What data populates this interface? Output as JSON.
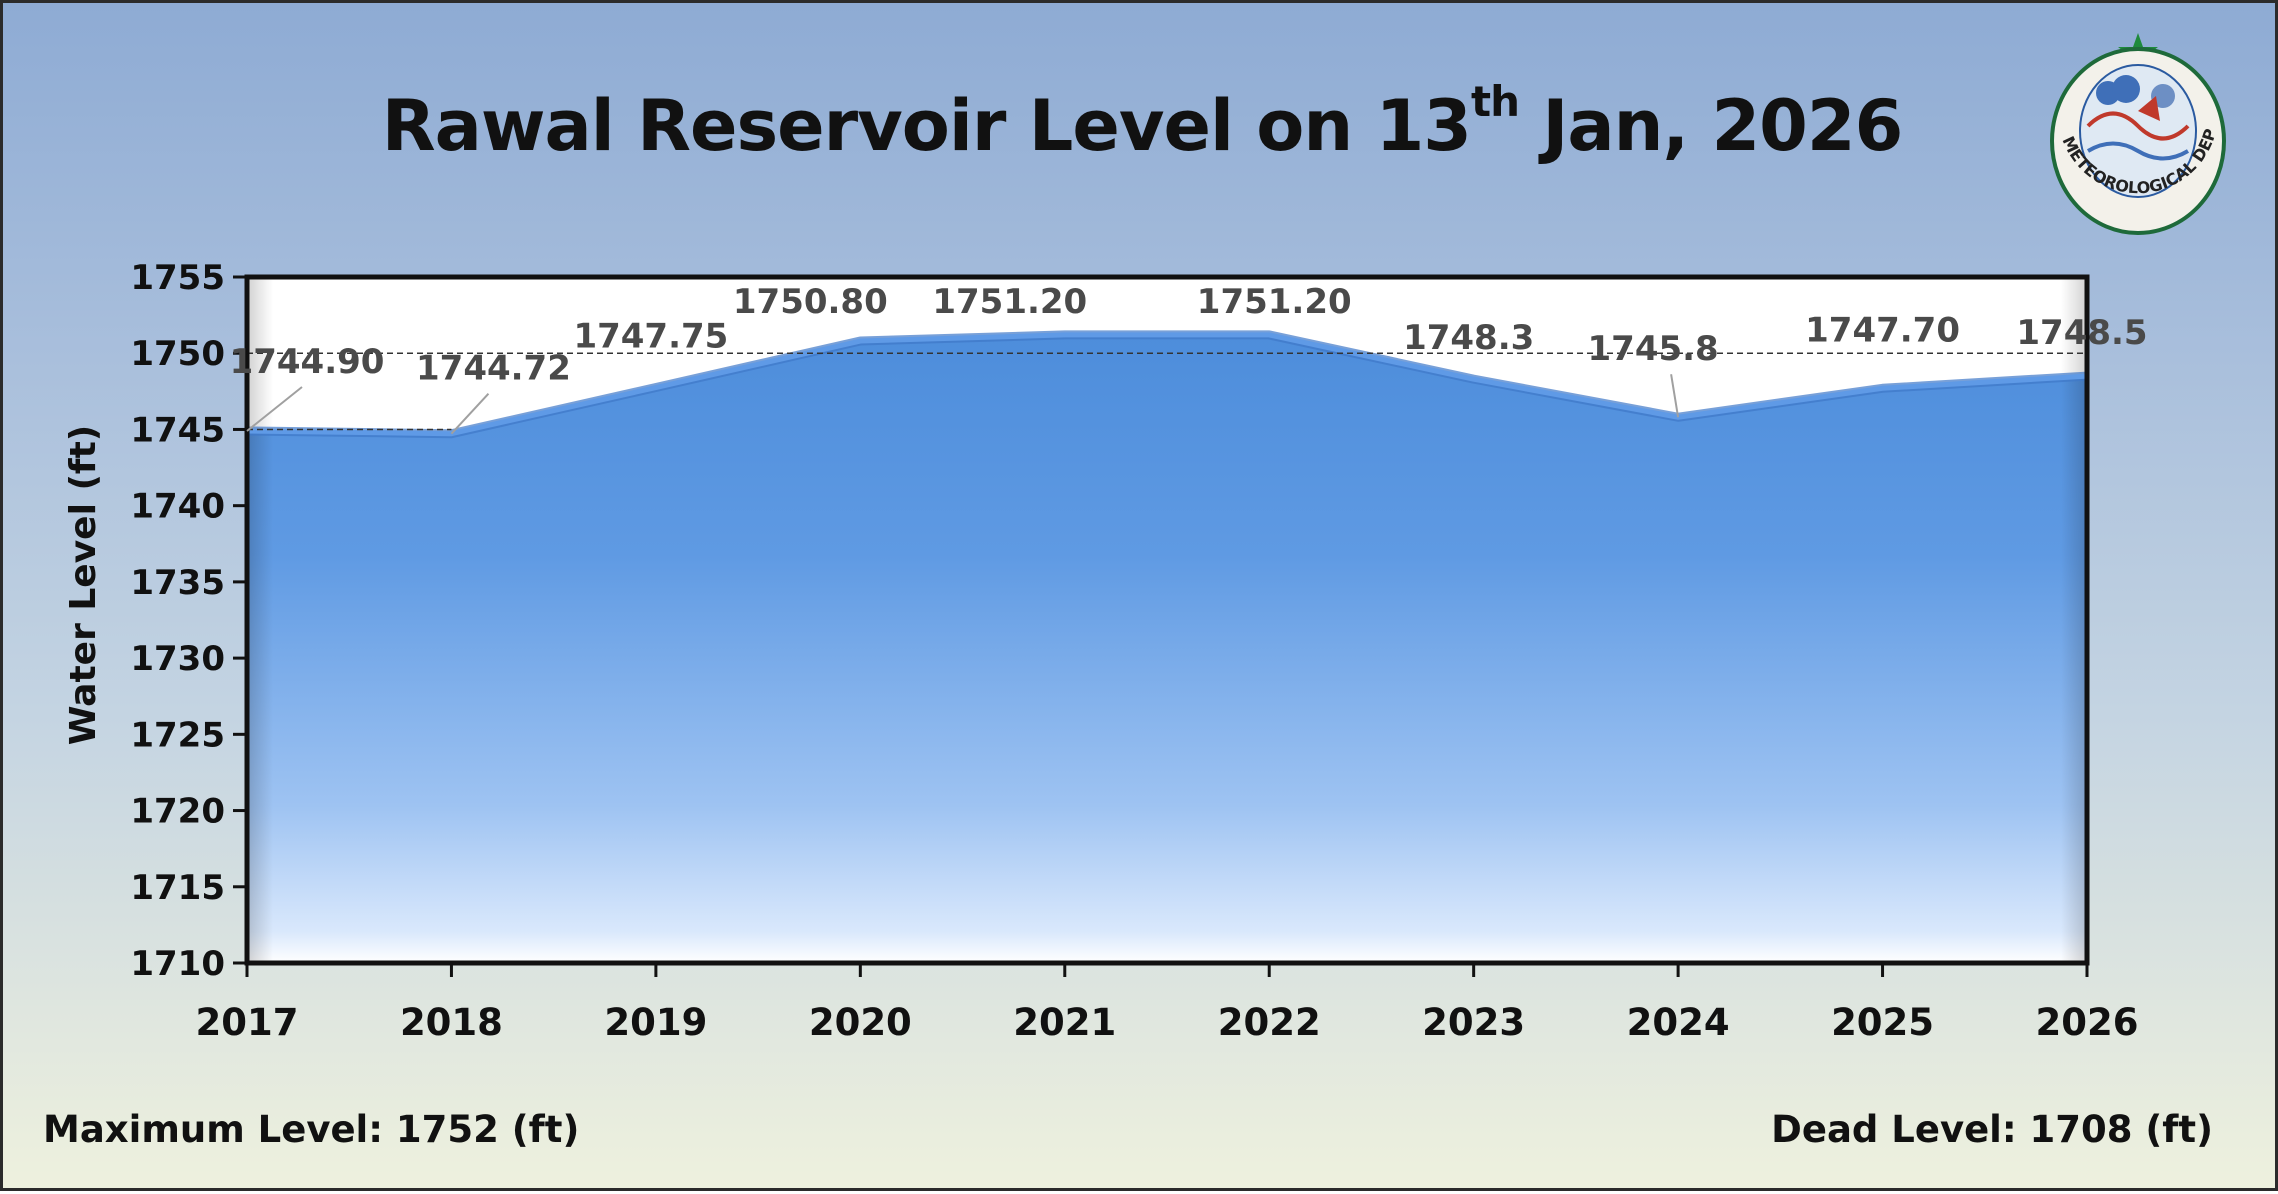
{
  "title": {
    "main": "Rawal Reservoir Level on 13",
    "sup": "th",
    "rest": " Jan, 2026"
  },
  "footer": {
    "max_level": "Maximum Level: 1752 (ft)",
    "dead_level": "Dead Level: 1708 (ft)"
  },
  "logo": {
    "text": "PAKISTAN METEOROLOGICAL DEPARTMENT"
  },
  "colors": {
    "area_top": "#4f8fdc",
    "area_bottom": "#ffffff",
    "line": "#5f9ae6",
    "label": "#4a4a4a"
  },
  "chart_data": {
    "type": "area",
    "title": "Rawal Reservoir Level on 13th Jan, 2026",
    "xlabel": "",
    "ylabel": "Water Level (ft)",
    "categories": [
      "2017",
      "2018",
      "2019",
      "2020",
      "2021",
      "2022",
      "2023",
      "2024",
      "2025",
      "2026"
    ],
    "values": [
      1744.9,
      1744.72,
      1747.75,
      1750.8,
      1751.2,
      1751.2,
      1748.3,
      1745.8,
      1747.7,
      1748.5
    ],
    "value_labels": [
      "1744.90",
      "1744.72",
      "1747.75",
      "1750.80",
      "1751.20",
      "1751.20",
      "1748.3",
      "1745.8",
      "1747.70",
      "1748.5"
    ],
    "y_ticks": [
      "1755",
      "1750",
      "1745",
      "1740",
      "1735",
      "1730",
      "1725",
      "1720",
      "1715",
      "1710"
    ],
    "ylim": [
      1710,
      1755
    ],
    "grid": false
  }
}
